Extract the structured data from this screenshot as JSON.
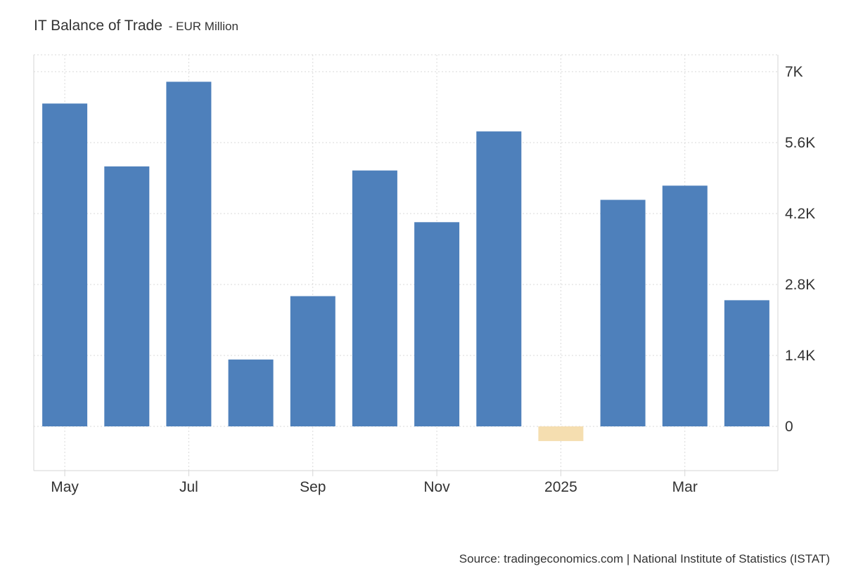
{
  "chart_data": {
    "type": "bar",
    "title": "IT Balance of Trade",
    "subtitle": "- EUR Million",
    "xlabel": "",
    "ylabel": "",
    "categories": [
      "2024-05",
      "2024-06",
      "2024-07",
      "2024-08",
      "2024-09",
      "2024-10",
      "2024-11",
      "2024-12",
      "2025-01",
      "2025-02",
      "2025-03",
      "2025-04"
    ],
    "x_tick_labels": [
      {
        "category": "2024-05",
        "label": "May"
      },
      {
        "category": "2024-07",
        "label": "Jul"
      },
      {
        "category": "2024-09",
        "label": "Sep"
      },
      {
        "category": "2024-11",
        "label": "Nov"
      },
      {
        "category": "2025-01",
        "label": "2025"
      },
      {
        "category": "2025-03",
        "label": "Mar"
      }
    ],
    "values": [
      6370,
      5130,
      6800,
      1320,
      2570,
      5050,
      4030,
      5820,
      -290,
      4470,
      4750,
      2490
    ],
    "y_ticks": [
      0,
      1400,
      2800,
      4200,
      5600,
      7000
    ],
    "y_tick_labels": [
      "0",
      "1.4K",
      "2.8K",
      "4.2K",
      "5.6K",
      "7K"
    ],
    "ylim": [
      -870,
      7300
    ],
    "grid": true,
    "y_axis_side": "right",
    "legend": "none",
    "colors": {
      "positive": "#4e80bb",
      "negative": "#f5deb0",
      "grid": "#d9d9d9",
      "axis": "#d6d6d6",
      "text": "#333333"
    }
  },
  "source": "Source: tradingeconomics.com | National Institute of Statistics (ISTAT)"
}
